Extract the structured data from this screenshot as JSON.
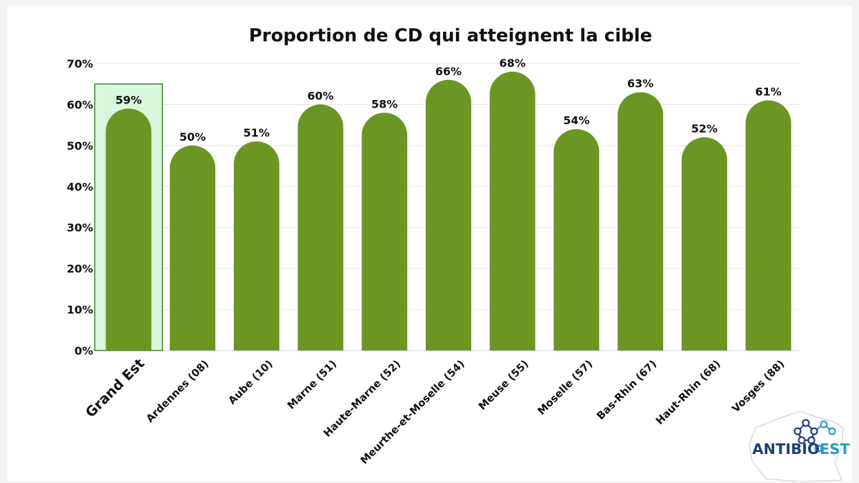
{
  "chart_data": {
    "type": "bar",
    "title": "Proportion de CD qui atteignent la cible",
    "categories": [
      "Grand Est",
      "Ardennes (08)",
      "Aube (10)",
      "Marne (51)",
      "Haute-Marne (52)",
      "Meurthe-et-Moselle (54)",
      "Meuse (55)",
      "Moselle (57)",
      "Bas-Rhin (67)",
      "Haut-Rhin (68)",
      "Vosges (88)"
    ],
    "values": [
      59,
      50,
      51,
      60,
      58,
      66,
      68,
      54,
      63,
      52,
      61
    ],
    "data_labels": [
      "59%",
      "50%",
      "51%",
      "60%",
      "58%",
      "66%",
      "68%",
      "54%",
      "63%",
      "52%",
      "61%"
    ],
    "yticks": [
      "0%",
      "10%",
      "20%",
      "30%",
      "40%",
      "50%",
      "60%",
      "70%"
    ],
    "ylim": [
      0,
      70
    ],
    "xlabel": "",
    "ylabel": "",
    "grid": true,
    "highlight_category": "Grand Est",
    "colors": {
      "bar": "#6a9624",
      "highlight_text": "#6a9624",
      "highlight_box_fill": "#d9f7dc",
      "highlight_box_stroke": "#3f7a2b",
      "grid": "#e3e3e3",
      "text": "#111111"
    }
  },
  "logo": {
    "text_main": "ANTIBIO",
    "text_accent": "EST",
    "color_main": "#1d3f7a",
    "color_accent": "#2b9bc6"
  }
}
